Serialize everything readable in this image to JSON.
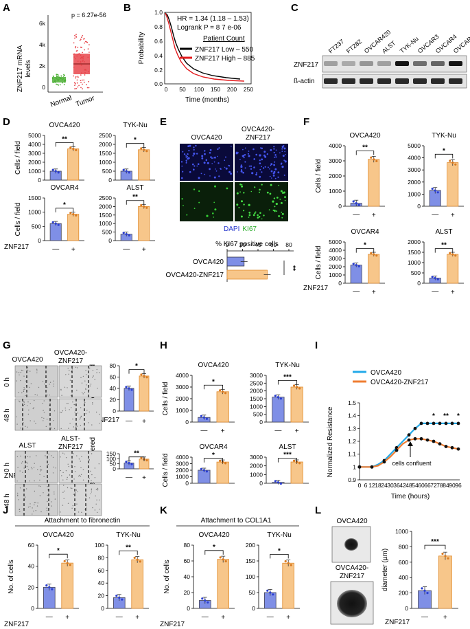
{
  "figure": {
    "panels": [
      "A",
      "B",
      "C",
      "D",
      "E",
      "F",
      "G",
      "H",
      "I",
      "J",
      "K",
      "L"
    ],
    "colors": {
      "control": "#7f8fe6",
      "znf": "#f7c68a",
      "znf_edge": "#e08a2c",
      "ctrl_dot": "#2a3ed1",
      "znf_dot": "#d97a20",
      "low": "#000000",
      "high": "#e31a1c",
      "line_ctrl": "#23a9e8",
      "line_znf": "#ef7d32",
      "tumor": "#e8454b",
      "normal": "#4caf35"
    },
    "common": {
      "cells_field": "Cells / field",
      "znf217": "ZNF217",
      "minus": "—",
      "plus": "+"
    }
  },
  "panelA": {
    "ylabel_1": "ZNF217 mRNA",
    "ylabel_2": "levels",
    "pvalue": "p = 6.27e-56",
    "yticks": [
      "6k",
      "4k",
      "2k",
      "0"
    ],
    "groups": [
      "Normal",
      "Tumor"
    ]
  },
  "panelB": {
    "hr": "HR = 1.34 (1.18 – 1.53)",
    "logrank": "Logrank P = 8 7 e-06",
    "legend_title": "Patient Count",
    "legend_low": "ZNF217 Low – 550",
    "legend_high": "ZNF217 High – 885",
    "ylabel": "Probability",
    "xlabel": "Time (months)",
    "yticks": [
      "1.0",
      "0.8",
      "0.6",
      "0.4",
      "0.2",
      "0.0"
    ],
    "xticks": [
      "0",
      "50",
      "100",
      "150",
      "200",
      "250"
    ]
  },
  "panelC": {
    "lanes": [
      "FT237",
      "FT282",
      "OVCAR420",
      "ALST",
      "TYK-Nu",
      "OVCAR3",
      "OVCAR4",
      "OVCAR8"
    ],
    "rows": [
      "ZNF217",
      "ß-actin"
    ],
    "znf_intensity": [
      0.3,
      0.25,
      0.35,
      0.3,
      1.0,
      0.55,
      0.6,
      1.0
    ]
  },
  "panelD": {
    "charts": [
      {
        "title": "OVCA420",
        "yticks": [
          "5000",
          "4000",
          "3000",
          "2000",
          "1000",
          "0"
        ],
        "ymax": 5000,
        "values": [
          1000,
          3500
        ],
        "sig": "**"
      },
      {
        "title": "TYK-Nu",
        "yticks": [
          "2500",
          "2000",
          "1500",
          "1000",
          "500",
          "0"
        ],
        "ymax": 2500,
        "values": [
          500,
          1700
        ],
        "sig": "*"
      },
      {
        "title": "OVCAR4",
        "yticks": [
          "1500",
          "1000",
          "500",
          "0"
        ],
        "ymax": 1500,
        "values": [
          600,
          930
        ],
        "sig": "*"
      },
      {
        "title": "ALST",
        "yticks": [
          "2500",
          "2000",
          "1500",
          "1000",
          "500",
          "0"
        ],
        "ymax": 2500,
        "values": [
          380,
          2000
        ],
        "sig": "**"
      }
    ]
  },
  "panelE": {
    "col1": "OVCA420",
    "col2_1": "OVCA420-",
    "col2_2": "ZNF217",
    "legend_dapi": "DAPI",
    "legend_ki67": "KI67",
    "bar_title": "% KI67 positive cells",
    "xticks": [
      "0",
      "20",
      "40",
      "60",
      "80"
    ],
    "categories": [
      "OVCA420",
      "OVCA420-ZNF217"
    ],
    "values": [
      22,
      52
    ],
    "sig": "**"
  },
  "panelF": {
    "charts": [
      {
        "title": "OVCA420",
        "yticks": [
          "4000",
          "3000",
          "2000",
          "1000",
          "0"
        ],
        "ymax": 4000,
        "values": [
          200,
          3100
        ],
        "sig": "**"
      },
      {
        "title": "TYK-Nu",
        "yticks": [
          "5000",
          "4000",
          "3000",
          "2000",
          "1000",
          "0"
        ],
        "ymax": 5000,
        "values": [
          1300,
          3600
        ],
        "sig": "*"
      },
      {
        "title": "OVCAR4",
        "yticks": [
          "5000",
          "4000",
          "3000",
          "2000",
          "1000",
          "0"
        ],
        "ymax": 5000,
        "values": [
          2200,
          3500
        ],
        "sig": "*"
      },
      {
        "title": "ALST",
        "yticks": [
          "2000",
          "1500",
          "1000",
          "500",
          "0"
        ],
        "ymax": 2000,
        "values": [
          250,
          1400
        ],
        "sig": "**"
      }
    ]
  },
  "panelG": {
    "top_col1": "OVCA420",
    "top_col2_1": "OVCA420-",
    "top_col2_2": "ZNF217",
    "bot_col1": "ALST",
    "bot_col2_1": "ALST-",
    "bot_col2_2": "ZNF217",
    "row_0h": "0 h",
    "row_48h": "48 h",
    "ylabel": "% area covered",
    "charts": [
      {
        "yticks": [
          "80",
          "60",
          "40",
          "20",
          "0"
        ],
        "ymax": 80,
        "values": [
          40,
          62
        ],
        "sig": "*"
      },
      {
        "yticks": [
          "150",
          "100",
          "50",
          "0"
        ],
        "ymax": 150,
        "values": [
          58,
          97
        ],
        "sig": "**"
      }
    ]
  },
  "panelH": {
    "charts": [
      {
        "title": "OVCA420",
        "yticks": [
          "4000",
          "3000",
          "2000",
          "1000",
          "0"
        ],
        "ymax": 4000,
        "values": [
          400,
          2600
        ],
        "sig": "*"
      },
      {
        "title": "TYK-Nu",
        "yticks": [
          "3000",
          "2500",
          "2000",
          "1500",
          "1000",
          "500",
          "0"
        ],
        "ymax": 3000,
        "values": [
          1600,
          2250
        ],
        "sig": "***"
      },
      {
        "title": "OVCAR4",
        "yticks": [
          "4000",
          "3000",
          "2000",
          "1000",
          "0"
        ],
        "ymax": 4000,
        "values": [
          2000,
          3250
        ],
        "sig": "*"
      },
      {
        "title": "ALST",
        "yticks": [
          "3000",
          "2000",
          "1000",
          "0"
        ],
        "ymax": 3000,
        "values": [
          100,
          2450
        ],
        "sig": "***"
      }
    ]
  },
  "panelI": {
    "legend": [
      "OVCA420",
      "OVCA420-ZNF217"
    ],
    "ylabel": "Normalized Resistance",
    "xlabel": "Time (hours)",
    "annotation": "cells confluent",
    "yticks": [
      "1.5",
      "1.4",
      "1.3",
      "1.2",
      "1.1",
      "1",
      "0.9"
    ],
    "xticks": [
      "0",
      "6",
      "12",
      "18",
      "24",
      "30",
      "36",
      "42",
      "48",
      "54",
      "60",
      "66",
      "72",
      "78",
      "84",
      "90",
      "96"
    ],
    "x": [
      0,
      6,
      12,
      18,
      24,
      30,
      36,
      42,
      48,
      54,
      60,
      66,
      72,
      78,
      84,
      90,
      96
    ],
    "series": [
      {
        "name": "OVCA420",
        "values": [
          1.0,
          1.0,
          1.0,
          1.02,
          1.05,
          1.1,
          1.15,
          1.2,
          1.25,
          1.3,
          1.34,
          1.34,
          1.34,
          1.34,
          1.34,
          1.34,
          1.34
        ]
      },
      {
        "name": "OVCA420-ZNF217",
        "values": [
          1.0,
          1.0,
          1.0,
          1.01,
          1.04,
          1.08,
          1.13,
          1.18,
          1.21,
          1.22,
          1.22,
          1.21,
          1.2,
          1.18,
          1.16,
          1.15,
          1.14
        ]
      }
    ],
    "stars": [
      "*",
      "**",
      "*"
    ]
  },
  "panelJ": {
    "header": "Attachment to fibronectin",
    "ylabel": "No. of cells",
    "charts": [
      {
        "title": "OVCA420",
        "yticks": [
          "60",
          "40",
          "20",
          "0"
        ],
        "ymax": 60,
        "values": [
          20,
          43
        ],
        "sig": "*"
      },
      {
        "title": "TYK-Nu",
        "yticks": [
          "100",
          "80",
          "60",
          "40",
          "20",
          "0"
        ],
        "ymax": 100,
        "values": [
          17,
          77
        ],
        "sig": "**"
      }
    ]
  },
  "panelK": {
    "header": "Attachment to COL1A1",
    "ylabel": "No. of cells",
    "charts": [
      {
        "title": "OVCA420",
        "yticks": [
          "80",
          "60",
          "40",
          "20",
          "0"
        ],
        "ymax": 80,
        "values": [
          10,
          62
        ],
        "sig": "*"
      },
      {
        "title": "TYK-Nu",
        "yticks": [
          "200",
          "150",
          "100",
          "50",
          "0"
        ],
        "ymax": 200,
        "values": [
          50,
          143
        ],
        "sig": "*"
      }
    ]
  },
  "panelL": {
    "img1": "OVCA420",
    "img2_1": "OVCA420-",
    "img2_2": "ZNF217",
    "ylabel": "diameter (µm)",
    "yticks": [
      "1000",
      "800",
      "600",
      "400",
      "200",
      "0"
    ],
    "ymax": 1000,
    "values": [
      230,
      680
    ],
    "sig": "***"
  },
  "chart_data": [
    {
      "type": "scatter",
      "panel": "A",
      "categories": [
        "Normal",
        "Tumor"
      ],
      "ylabel": "ZNF217 mRNA levels",
      "annotation": "p = 6.27e-56",
      "median": [
        650,
        2300
      ]
    },
    {
      "type": "line",
      "panel": "B",
      "xlabel": "Time (months)",
      "ylabel": "Probability",
      "series": [
        {
          "name": "ZNF217 Low – 550"
        },
        {
          "name": "ZNF217 High – 885"
        }
      ]
    },
    {
      "type": "bar",
      "panel": "E",
      "categories": [
        "OVCA420",
        "OVCA420-ZNF217"
      ],
      "values": [
        22,
        52
      ],
      "title": "% KI67 positive cells",
      "xlim": [
        0,
        80
      ]
    },
    {
      "type": "line",
      "panel": "I",
      "x": [
        0,
        6,
        12,
        18,
        24,
        30,
        36,
        42,
        48,
        54,
        60,
        66,
        72,
        78,
        84,
        90,
        96
      ],
      "series": [
        {
          "name": "OVCA420",
          "values": [
            1.0,
            1.0,
            1.0,
            1.02,
            1.05,
            1.1,
            1.15,
            1.2,
            1.25,
            1.3,
            1.34,
            1.34,
            1.34,
            1.34,
            1.34,
            1.34,
            1.34
          ]
        },
        {
          "name": "OVCA420-ZNF217",
          "values": [
            1.0,
            1.0,
            1.0,
            1.01,
            1.04,
            1.08,
            1.13,
            1.18,
            1.21,
            1.22,
            1.22,
            1.21,
            1.2,
            1.18,
            1.16,
            1.15,
            1.14
          ]
        }
      ],
      "xlabel": "Time (hours)",
      "ylabel": "Normalized Resistance",
      "ylim": [
        0.9,
        1.5
      ]
    },
    {
      "type": "bar",
      "panel": "L",
      "categories": [
        "—",
        "+"
      ],
      "values": [
        230,
        680
      ],
      "ylabel": "diameter (µm)",
      "ylim": [
        0,
        1000
      ]
    }
  ]
}
